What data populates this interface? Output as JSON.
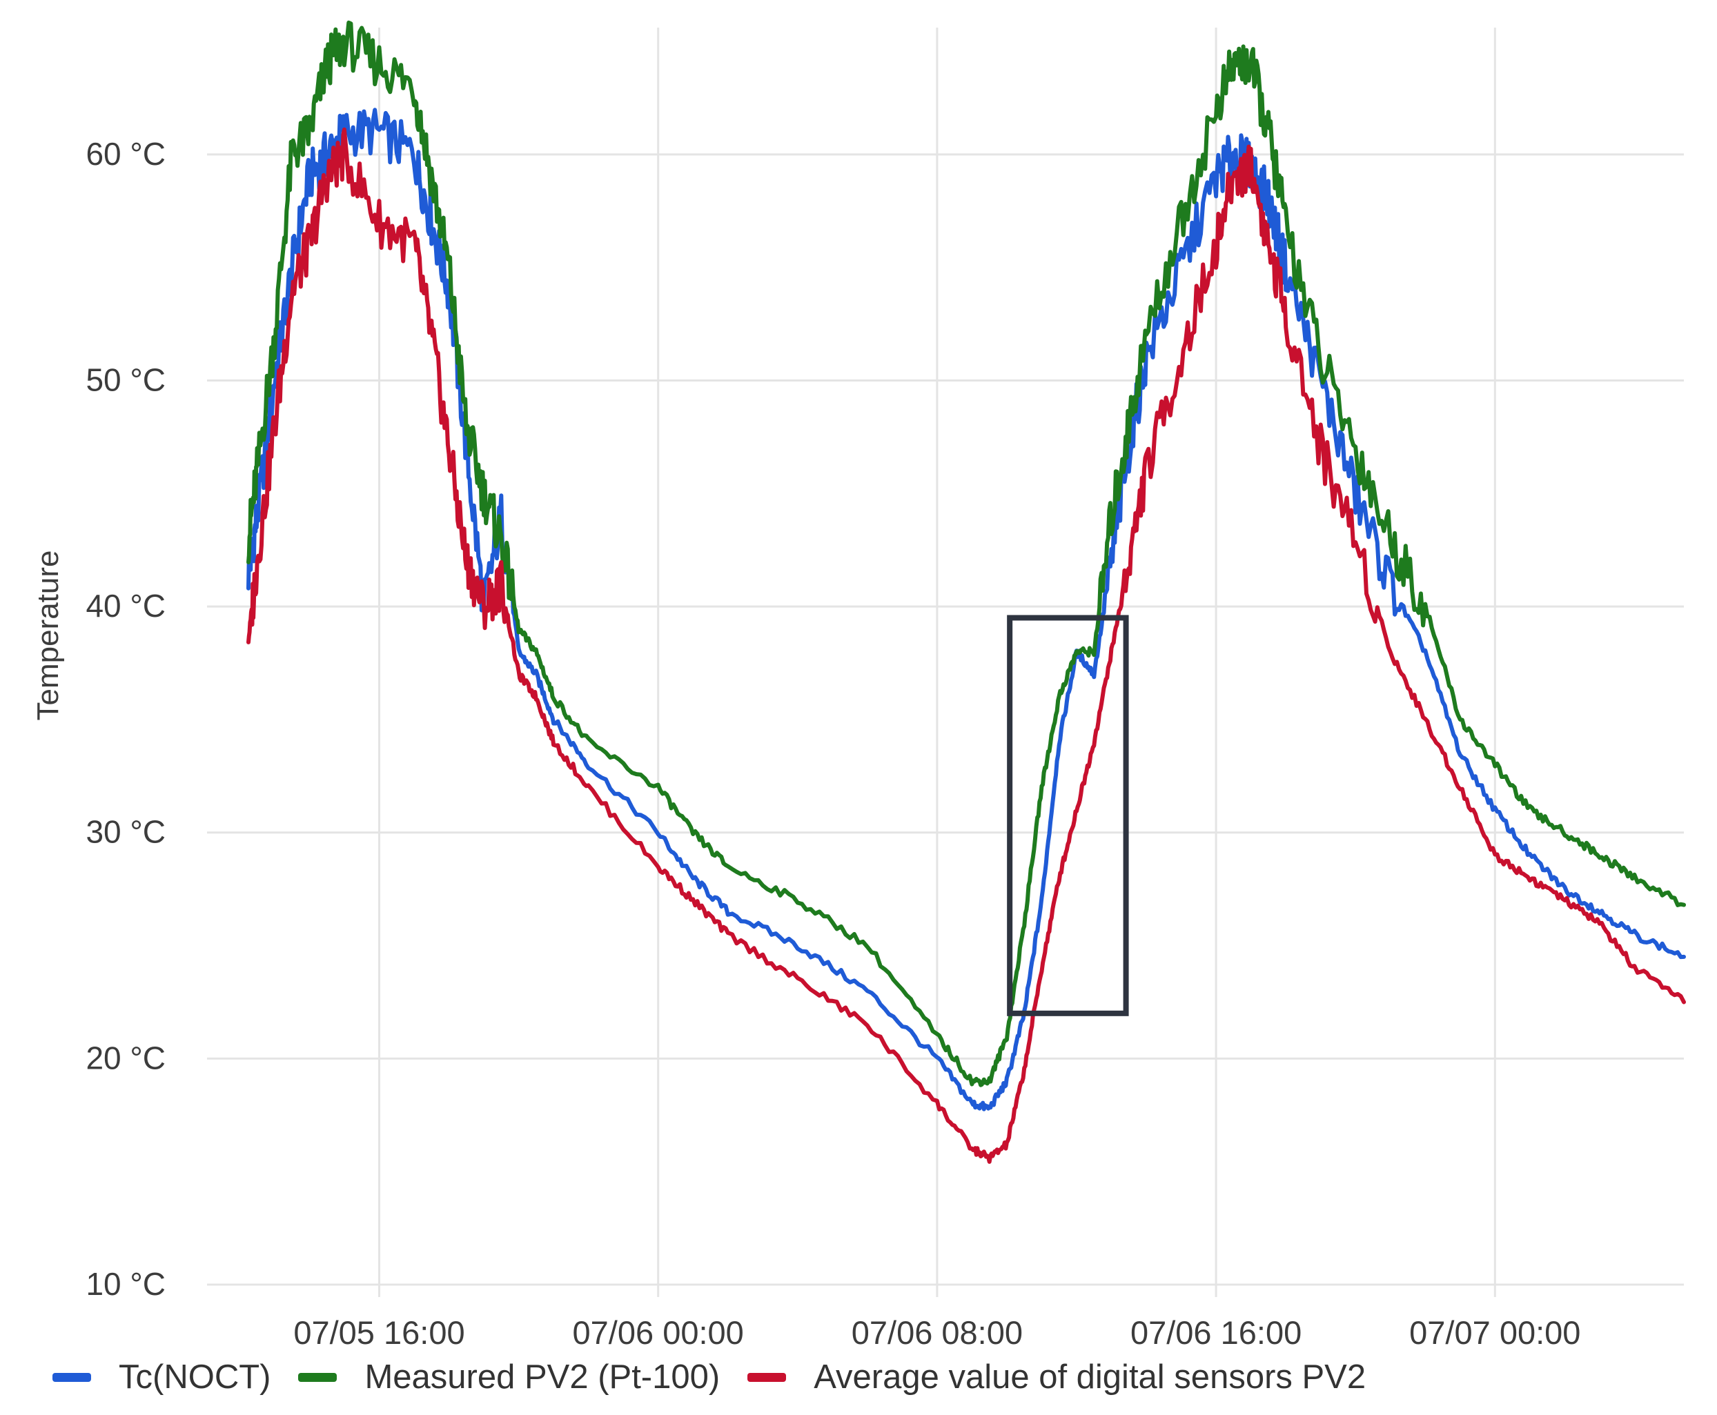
{
  "chart_data": {
    "type": "line",
    "title": "",
    "xlabel": "",
    "ylabel": "Temperature",
    "y_unit": "°C",
    "ylim": [
      10,
      65
    ],
    "y_ticks": [
      {
        "value": 10,
        "label": "10 °C"
      },
      {
        "value": 20,
        "label": "20 °C"
      },
      {
        "value": 30,
        "label": "30 °C"
      },
      {
        "value": 40,
        "label": "40 °C"
      },
      {
        "value": 50,
        "label": "50 °C"
      },
      {
        "value": 60,
        "label": "60 °C"
      }
    ],
    "x_range": [
      "2024-07-05T12:15",
      "2024-07-07T05:25"
    ],
    "x_ticks": [
      {
        "value": "2024-07-05T16:00",
        "label": "07/05 16:00"
      },
      {
        "value": "2024-07-06T00:00",
        "label": "07/06 00:00"
      },
      {
        "value": "2024-07-06T08:00",
        "label": "07/06 08:00"
      },
      {
        "value": "2024-07-06T16:00",
        "label": "07/06 16:00"
      },
      {
        "value": "2024-07-07T00:00",
        "label": "07/07 00:00"
      }
    ],
    "grid": true,
    "legend_position": "bottom-left",
    "highlight_box": {
      "x_from": "2024-07-06T10:05",
      "x_to": "2024-07-06T13:25",
      "y_from": 22,
      "y_to": 39.5,
      "color": "#2e3440"
    },
    "x": [
      "2024-07-05T12:15",
      "2024-07-05T12:30",
      "2024-07-05T13:00",
      "2024-07-05T13:30",
      "2024-07-05T14:00",
      "2024-07-05T14:30",
      "2024-07-05T15:00",
      "2024-07-05T16:00",
      "2024-07-05T17:00",
      "2024-07-05T17:30",
      "2024-07-05T18:00",
      "2024-07-05T18:30",
      "2024-07-05T19:00",
      "2024-07-05T19:30",
      "2024-07-05T20:00",
      "2024-07-05T20:30",
      "2024-07-05T21:00",
      "2024-07-05T22:00",
      "2024-07-06T00:00",
      "2024-07-06T01:00",
      "2024-07-06T02:00",
      "2024-07-06T04:00",
      "2024-07-06T06:00",
      "2024-07-06T08:00",
      "2024-07-06T09:00",
      "2024-07-06T09:30",
      "2024-07-06T10:00",
      "2024-07-06T10:30",
      "2024-07-06T11:00",
      "2024-07-06T11:30",
      "2024-07-06T12:00",
      "2024-07-06T12:30",
      "2024-07-06T13:00",
      "2024-07-06T13:30",
      "2024-07-06T14:00",
      "2024-07-06T15:00",
      "2024-07-06T16:00",
      "2024-07-06T16:30",
      "2024-07-06T17:00",
      "2024-07-06T17:30",
      "2024-07-06T18:00",
      "2024-07-06T19:00",
      "2024-07-06T20:00",
      "2024-07-06T21:00",
      "2024-07-06T22:00",
      "2024-07-06T23:00",
      "2024-07-07T00:00",
      "2024-07-07T01:00",
      "2024-07-07T02:00",
      "2024-07-07T03:00",
      "2024-07-07T04:00",
      "2024-07-07T05:25"
    ],
    "series": [
      {
        "name": "Tc(NOCT)",
        "color": "#1f5bd6",
        "values": [
          41.5,
          44,
          50,
          55,
          59,
          60,
          61,
          61,
          60,
          57,
          54,
          47,
          40,
          44,
          38,
          37,
          35,
          33,
          30,
          28,
          26.5,
          25,
          23,
          20,
          18,
          17.8,
          19,
          22,
          27,
          34,
          38,
          37,
          42,
          47,
          51,
          55,
          59,
          60,
          59.5,
          58,
          55,
          50,
          45,
          41,
          38,
          33.5,
          31,
          29,
          27.5,
          26.5,
          25.5,
          24.5
        ]
      },
      {
        "name": "Measured PV2 (Pt-100)",
        "color": "#1e7b1e",
        "values": [
          43,
          46,
          52,
          60,
          61,
          64,
          65,
          64,
          63,
          59,
          55,
          48,
          45,
          43,
          39,
          38,
          36,
          34,
          32,
          30,
          28.5,
          27,
          25,
          21,
          19,
          19,
          21,
          26,
          32,
          36,
          38,
          38,
          44,
          48,
          52,
          57,
          62,
          64,
          64,
          61,
          57,
          51,
          47,
          43,
          40,
          35,
          33,
          31,
          30,
          29,
          28,
          26.8
        ]
      },
      {
        "name": "Average value of digital sensors PV2",
        "color": "#c8102e",
        "values": [
          38.5,
          42,
          48,
          54,
          56,
          59,
          60,
          57,
          56,
          52,
          47,
          42,
          40,
          41,
          37,
          36,
          34,
          32,
          28.5,
          27,
          25.5,
          23.5,
          21.5,
          18,
          16,
          15.6,
          16.2,
          19.5,
          24,
          28,
          31,
          34,
          38,
          42,
          46,
          51,
          56,
          59,
          59.5,
          56,
          53,
          47,
          43,
          38,
          35,
          32,
          29,
          28,
          27,
          26,
          24,
          22.5
        ]
      }
    ]
  }
}
